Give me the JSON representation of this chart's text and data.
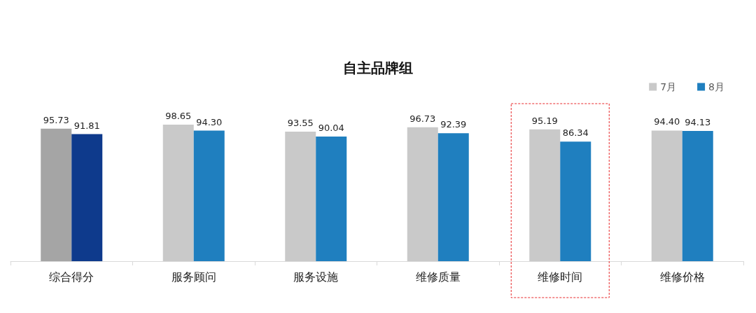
{
  "chart_data": {
    "type": "bar",
    "title": "自主品牌组",
    "categories": [
      "综合得分",
      "服务顾问",
      "服务设施",
      "维修质量",
      "维修时间",
      "维修价格"
    ],
    "series": [
      {
        "name": "7月",
        "color": "#c9c9c9",
        "colors": [
          "#a5a5a5",
          "#c9c9c9",
          "#c9c9c9",
          "#c9c9c9",
          "#c9c9c9",
          "#c9c9c9"
        ],
        "values": [
          95.73,
          98.65,
          93.55,
          96.73,
          95.19,
          94.4
        ],
        "value_labels": [
          "95.73",
          "98.65",
          "93.55",
          "96.73",
          "95.19",
          "94.40"
        ]
      },
      {
        "name": "8月",
        "color": "#1f7fbf",
        "colors": [
          "#0e3a8c",
          "#1f7fbf",
          "#1f7fbf",
          "#1f7fbf",
          "#1f7fbf",
          "#1f7fbf"
        ],
        "values": [
          91.81,
          94.3,
          90.04,
          92.39,
          86.34,
          94.13
        ],
        "value_labels": [
          "91.81",
          "94.30",
          "90.04",
          "92.39",
          "86.34",
          "94.13"
        ]
      }
    ],
    "tick_labels": "x",
    "legend": "top right",
    "grid": false
  }
}
